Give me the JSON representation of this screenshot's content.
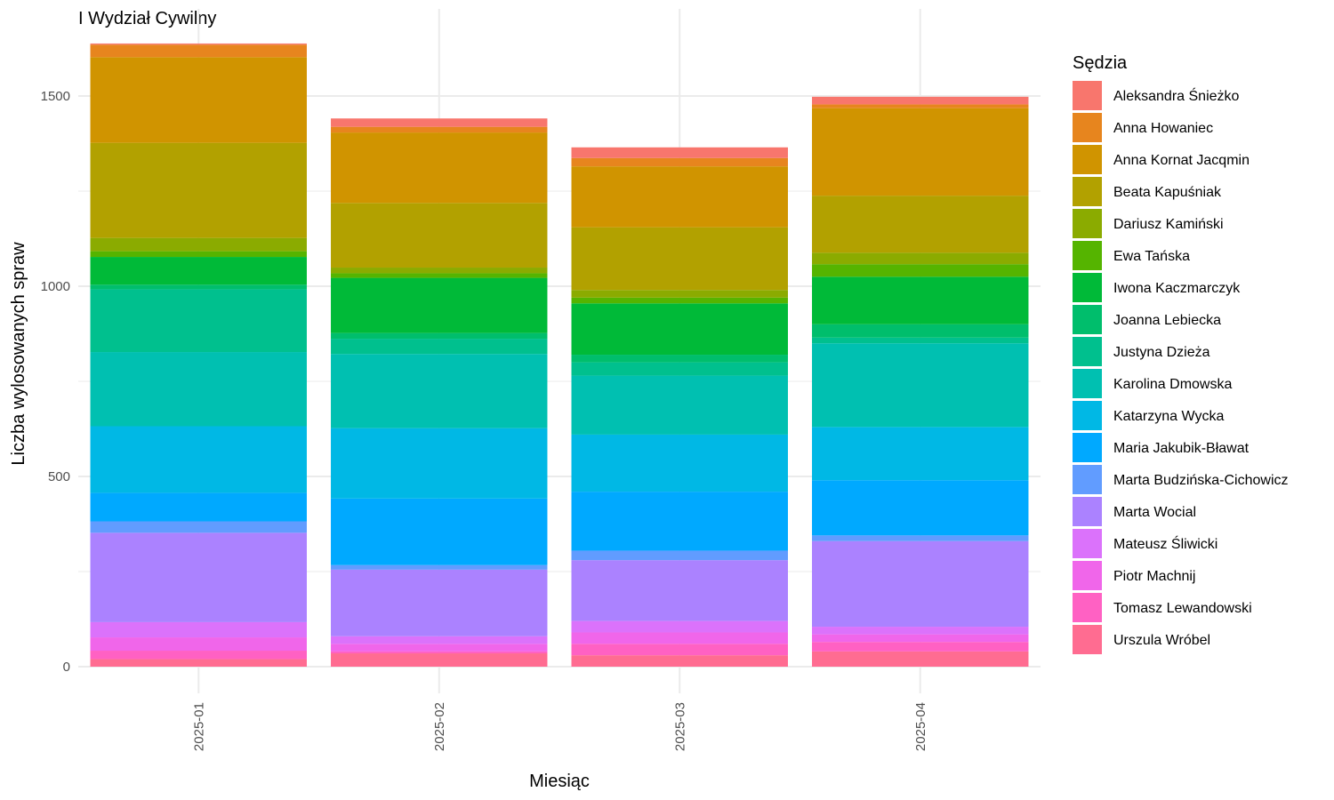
{
  "chart_data": {
    "type": "bar",
    "stacked": true,
    "title": "I Wydział Cywilny",
    "xlabel": "Miesiąc",
    "ylabel": "Liczba wylosowanych spraw",
    "categories": [
      "2025-01",
      "2025-02",
      "2025-03",
      "2025-04"
    ],
    "ylim": [
      0,
      1650
    ],
    "yticks": [
      0,
      500,
      1000,
      1500
    ],
    "grid": true,
    "legend_title": "Sędzia",
    "legend_position": "right",
    "series": [
      {
        "name": "Aleksandra Śnieżko",
        "color": "#F8766D",
        "values": [
          3,
          22,
          28,
          20
        ]
      },
      {
        "name": "Anna Howaniec",
        "color": "#E7851E",
        "values": [
          33,
          15,
          22,
          10
        ]
      },
      {
        "name": "Anna Kornat Jacqmin",
        "color": "#D09400",
        "values": [
          225,
          185,
          160,
          230
        ]
      },
      {
        "name": "Beata Kapuśniak",
        "color": "#B2A100",
        "values": [
          250,
          170,
          165,
          150
        ]
      },
      {
        "name": "Dariusz Kamiński",
        "color": "#8BAB00",
        "values": [
          35,
          15,
          20,
          30
        ]
      },
      {
        "name": "Ewa Tańska",
        "color": "#55B400",
        "values": [
          15,
          12,
          15,
          33
        ]
      },
      {
        "name": "Iwona Kaczmarczyk",
        "color": "#00BA38",
        "values": [
          73,
          145,
          135,
          125
        ]
      },
      {
        "name": "Joanna Lebiecka",
        "color": "#00BE6C",
        "values": [
          12,
          15,
          20,
          35
        ]
      },
      {
        "name": "Justyna Dzieża",
        "color": "#00C08E",
        "values": [
          165,
          40,
          35,
          15
        ]
      },
      {
        "name": "Karolina Dmowska",
        "color": "#00C0B1",
        "values": [
          195,
          195,
          155,
          220
        ]
      },
      {
        "name": "Katarzyna Wycka",
        "color": "#00B8E5",
        "values": [
          175,
          185,
          150,
          140
        ]
      },
      {
        "name": "Maria Jakubik-Bławat",
        "color": "#00A9FF",
        "values": [
          75,
          175,
          155,
          145
        ]
      },
      {
        "name": "Marta Budzińska-Cichowicz",
        "color": "#619CFF",
        "values": [
          30,
          12,
          25,
          15
        ]
      },
      {
        "name": "Marta Wocial",
        "color": "#AB82FF",
        "values": [
          235,
          175,
          160,
          225
        ]
      },
      {
        "name": "Mateusz Śliwicki",
        "color": "#DB72FB",
        "values": [
          40,
          20,
          30,
          20
        ]
      },
      {
        "name": "Piotr Machnij",
        "color": "#F066EA",
        "values": [
          35,
          20,
          30,
          20
        ]
      },
      {
        "name": "Tomasz Lewandowski",
        "color": "#FF61C3",
        "values": [
          22,
          5,
          30,
          25
        ]
      },
      {
        "name": "Urszula Wróbel",
        "color": "#FF6C91",
        "values": [
          20,
          35,
          30,
          40
        ]
      }
    ]
  }
}
